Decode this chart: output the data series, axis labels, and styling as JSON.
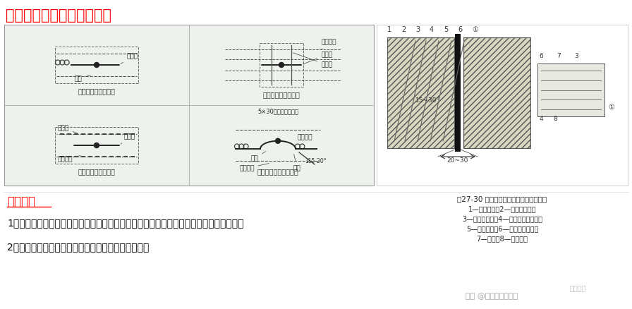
{
  "title": "中埋式橡胶止水带安装方法",
  "title_color": "#FF0000",
  "title_fontsize": 15,
  "bg_color": "#FFFFFF",
  "diagram_bg": "#EDF2ED",
  "section2_title": "使用阶段",
  "section2_color": "#FF0000",
  "section2_fontsize": 12,
  "text_line1": "1）加强通道两侧沉降观测，确保沉降稳定；当沉降量过大时，应进行局部地基加固处理；",
  "text_line2": "2）对顶、底板及外墙渗漏点，按注浆方式进行处理。",
  "text_color": "#000000",
  "text_fontsize": 10,
  "watermark": "头条 @建筑工程一点通",
  "watermark2": "易筑施工",
  "right_diagram_labels": [
    "图27-30 顶（底）板中埋式止水带的固定",
    "1—结构主筋；2—混凝土结构；",
    "3—固定用钢筋；4—固定止水带扁钢；",
    "5—填缝材料；6—中埋式止水带；",
    "7—螺母；8—双头螺杆"
  ]
}
